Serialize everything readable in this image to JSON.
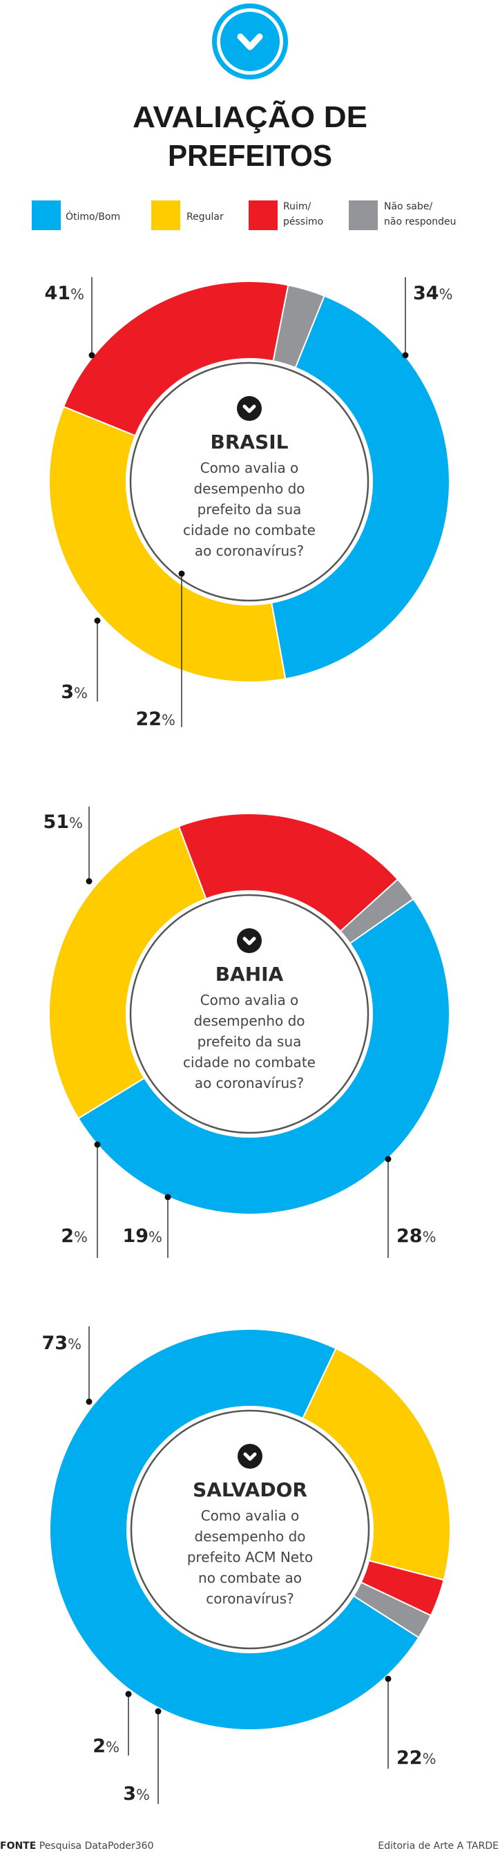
{
  "header": {
    "title_line1": "AVALIAÇÃO DE",
    "title_line2": "PREFEITOS",
    "logo_icon": "chevron-down-circle-icon"
  },
  "legend": [
    {
      "label": "Ótimo/Bom",
      "color": "#00AEEF"
    },
    {
      "label": "Regular",
      "color": "#FFCC00"
    },
    {
      "label_line1": "Ruim/",
      "label_line2": "péssimo",
      "color": "#ED1C24"
    },
    {
      "label_line1": "Não sabe/",
      "label_line2": "não respondeu",
      "color": "#939598"
    }
  ],
  "chart_data": [
    {
      "type": "pie",
      "title": "BRASIL",
      "question": [
        "Como avalia o",
        "desempenho do",
        "prefeito da sua",
        "cidade no combate",
        "ao coronavírus?"
      ],
      "categories": [
        "Ótimo/Bom",
        "Regular",
        "Ruim/péssimo",
        "Não sabe/não respondeu"
      ],
      "values": [
        41,
        34,
        22,
        3
      ],
      "value_labels": [
        "41",
        "34",
        "22",
        "3"
      ],
      "unit": "%"
    },
    {
      "type": "pie",
      "title": "BAHIA",
      "question": [
        "Como avalia o",
        "desempenho do",
        "prefeito da sua",
        "cidade no combate",
        "ao coronavírus?"
      ],
      "categories": [
        "Ótimo/Bom",
        "Regular",
        "Ruim/péssimo",
        "Não sabe/não respondeu"
      ],
      "values": [
        51,
        28,
        19,
        2
      ],
      "value_labels": [
        "51",
        "28",
        "19",
        "2"
      ],
      "unit": "%"
    },
    {
      "type": "pie",
      "title": "SALVADOR",
      "question": [
        "Como avalia o",
        "desempenho do",
        "prefeito ACM Neto",
        "no combate ao",
        "coronavírus?"
      ],
      "categories": [
        "Ótimo/Bom",
        "Regular",
        "Ruim/péssimo",
        "Não sabe/não respondeu"
      ],
      "values": [
        73,
        22,
        3,
        2
      ],
      "value_labels": [
        "73",
        "22",
        "3",
        "2"
      ],
      "unit": "%"
    }
  ],
  "footer": {
    "source_label": "FONTE",
    "source": "Pesquisa DataPoder360",
    "credit": "Editoria de Arte A TARDE"
  }
}
